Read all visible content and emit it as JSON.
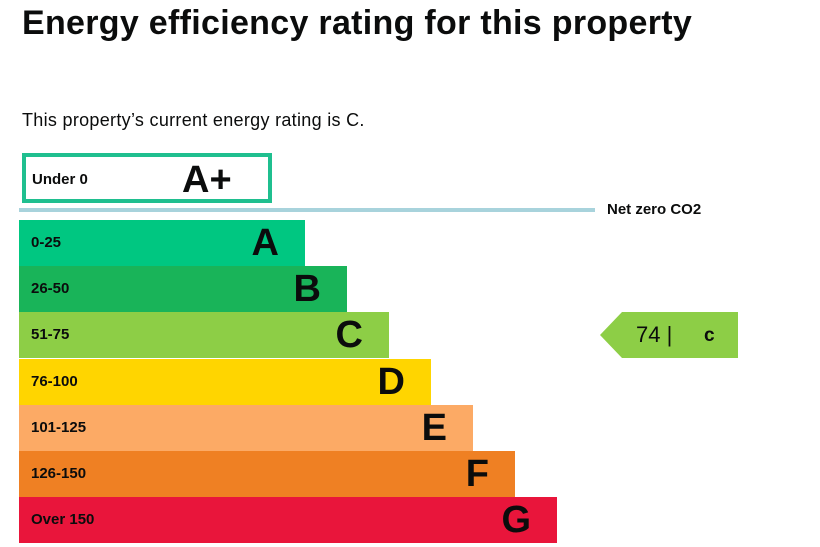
{
  "title": "Energy efficiency rating for this property",
  "subtitle": "This property’s current energy rating is C.",
  "chart_data": {
    "type": "bar",
    "title": "Energy efficiency rating for this property",
    "bands": [
      {
        "range": "0-25",
        "letter": "A",
        "color": "#00c781"
      },
      {
        "range": "26-50",
        "letter": "B",
        "color": "#19b459"
      },
      {
        "range": "51-75",
        "letter": "C",
        "color": "#8dce46"
      },
      {
        "range": "76-100",
        "letter": "D",
        "color": "#ffd500"
      },
      {
        "range": "101-125",
        "letter": "E",
        "color": "#fcaa65"
      },
      {
        "range": "126-150",
        "letter": "F",
        "color": "#ef8023"
      },
      {
        "range": "Over 150",
        "letter": "G",
        "color": "#e9153b"
      }
    ],
    "top_band": {
      "range": "Under 0",
      "letter": "A+",
      "color": "#1fbf8f"
    },
    "net_zero_label": "Net zero CO2",
    "current": {
      "score": "74 |",
      "letter": "c",
      "band_index": 2,
      "color": "#8dce46"
    }
  }
}
